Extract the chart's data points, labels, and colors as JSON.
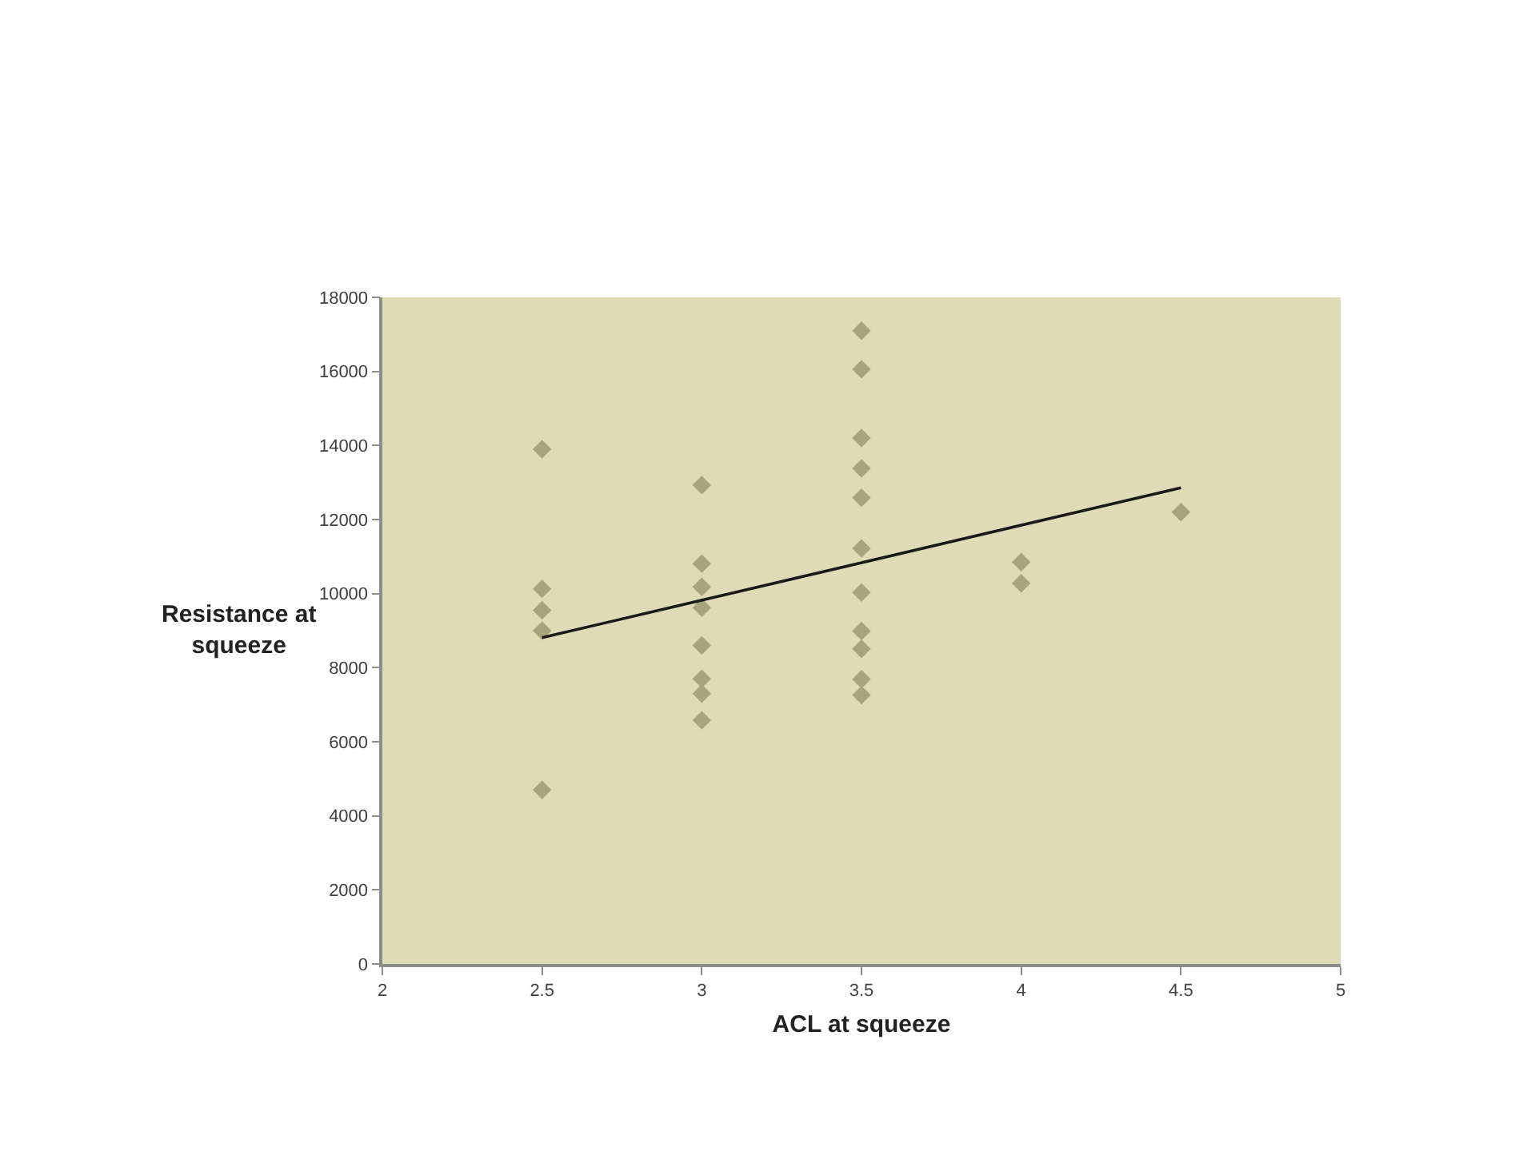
{
  "chart_data": {
    "type": "scatter",
    "xlabel": "ACL at squeeze",
    "ylabel": "Resistance at\nsqueeze",
    "xlim": [
      2,
      5
    ],
    "xticks": [
      2,
      2.5,
      3,
      3.5,
      4,
      4.5,
      5
    ],
    "ylim": [
      0,
      18000
    ],
    "yticks": [
      0,
      2000,
      4000,
      6000,
      8000,
      10000,
      12000,
      14000,
      16000,
      18000
    ],
    "grid": false,
    "marker": "diamond",
    "series": [
      {
        "color": "#a8a47c",
        "x": [
          2.5,
          2.5,
          2.5,
          2.5,
          2.5,
          3,
          3,
          3,
          3,
          3,
          3,
          3,
          3,
          3.5,
          3.5,
          3.5,
          3.5,
          3.5,
          3.5,
          3.5,
          3.5,
          3.5,
          3.5,
          3.5,
          4,
          4,
          4.5
        ],
        "values": [
          13900,
          10130,
          9550,
          9000,
          4700,
          12930,
          10810,
          10180,
          9620,
          8600,
          7700,
          7300,
          6580,
          17100,
          16060,
          14200,
          13380,
          12590,
          11220,
          10030,
          8990,
          8510,
          7690,
          7260,
          10850,
          10280,
          12200
        ]
      },
      {
        "type": "line",
        "color": "#1a1a1a",
        "marker": "none",
        "x": [
          2.5,
          4.5
        ],
        "values": [
          8810,
          12860
        ]
      }
    ]
  }
}
